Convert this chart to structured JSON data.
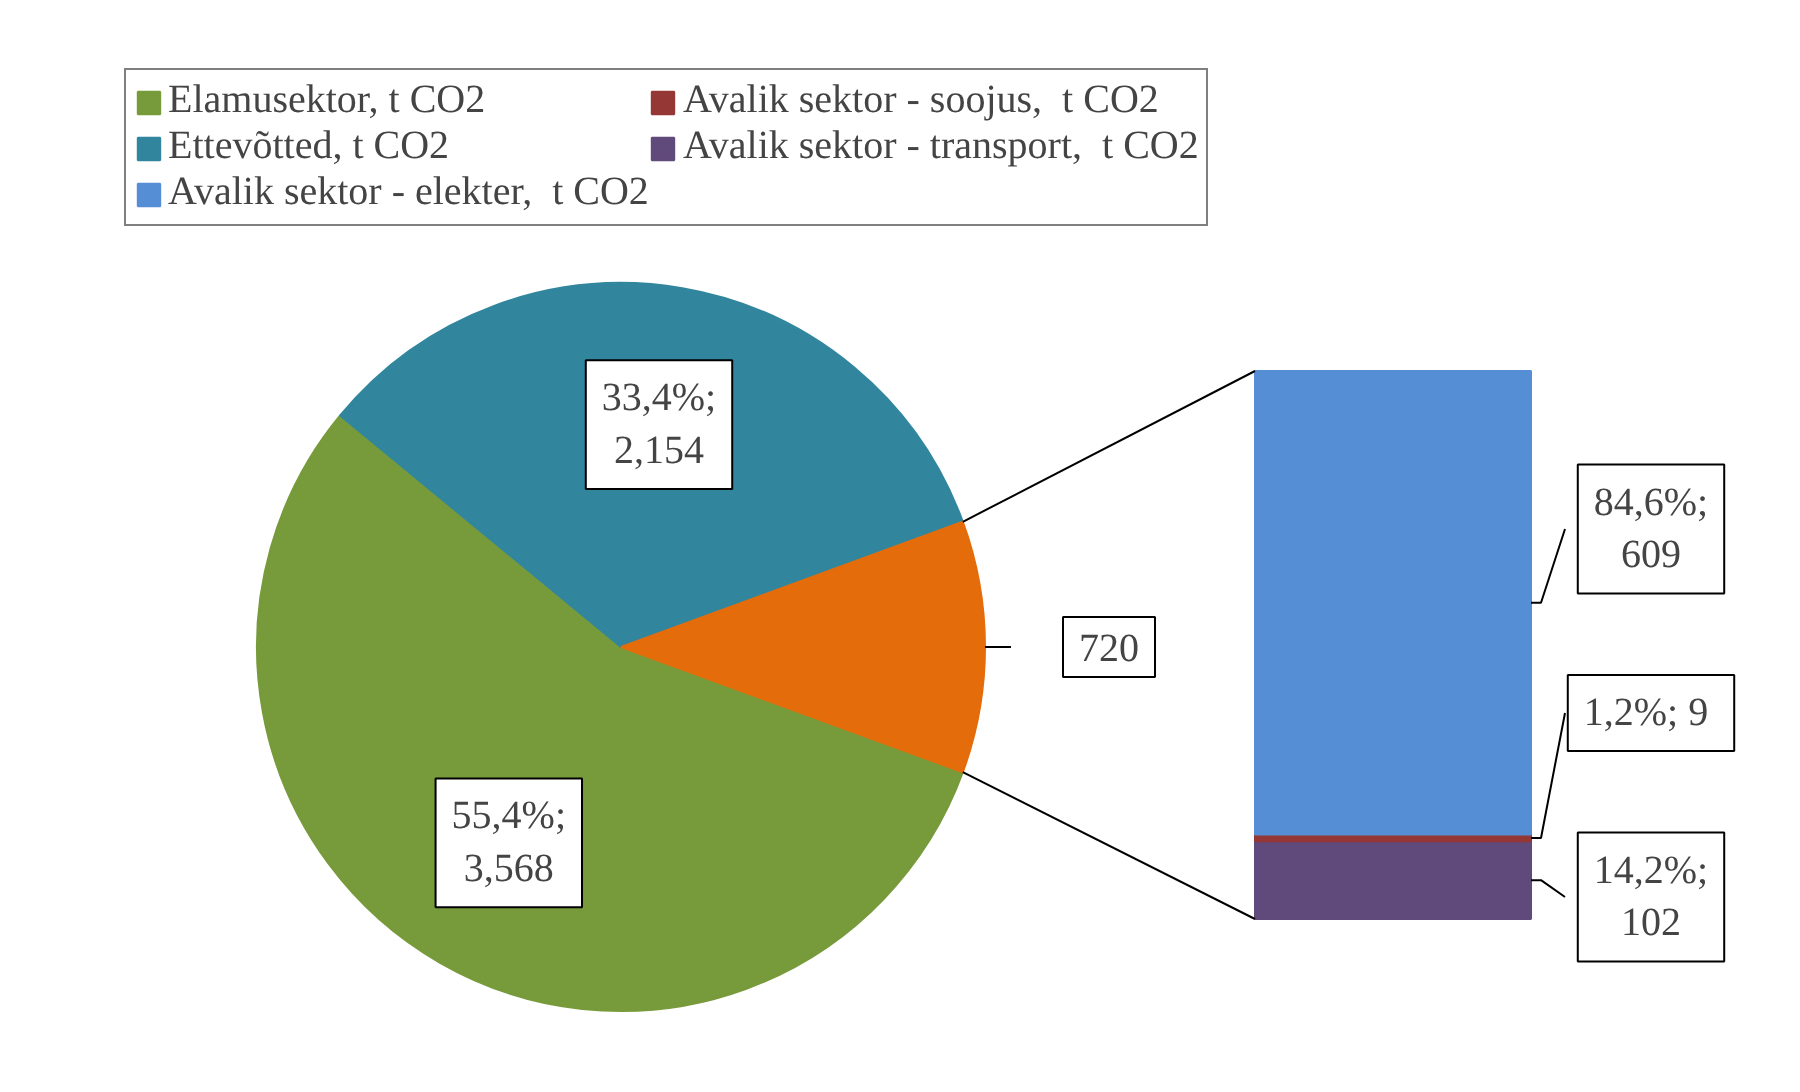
{
  "chart_data": [
    {
      "type": "pie",
      "categories": [
        "Elamusektor, t CO2",
        "Ettevõtted, t CO2",
        null
      ],
      "values": [
        3568,
        2154,
        720
      ],
      "colors": [
        "#779a3b",
        "#31869e",
        "#e46c0a"
      ],
      "value_labels": [
        "55,4%;\n3,568",
        "33,4%;\n2,154",
        "720"
      ],
      "legend": "top"
    },
    {
      "type": "bar",
      "stacked": true,
      "categories": [
        null
      ],
      "legend": "top",
      "series": [
        {
          "name": "Avalik sektor - transport,  t CO2",
          "color": "#604a7b",
          "values": [
            102
          ],
          "value_labels": [
            "14,2%;\n102"
          ]
        },
        {
          "name": "Avalik sektor - soojus,  t CO2",
          "color": "#953735",
          "values": [
            9
          ],
          "value_labels": [
            "1,2%;  9"
          ]
        },
        {
          "name": "Avalik sektor - elekter,  t CO2",
          "color": "#558ed5",
          "values": [
            609
          ],
          "value_labels": [
            "84,6%;\n609"
          ]
        }
      ]
    }
  ]
}
